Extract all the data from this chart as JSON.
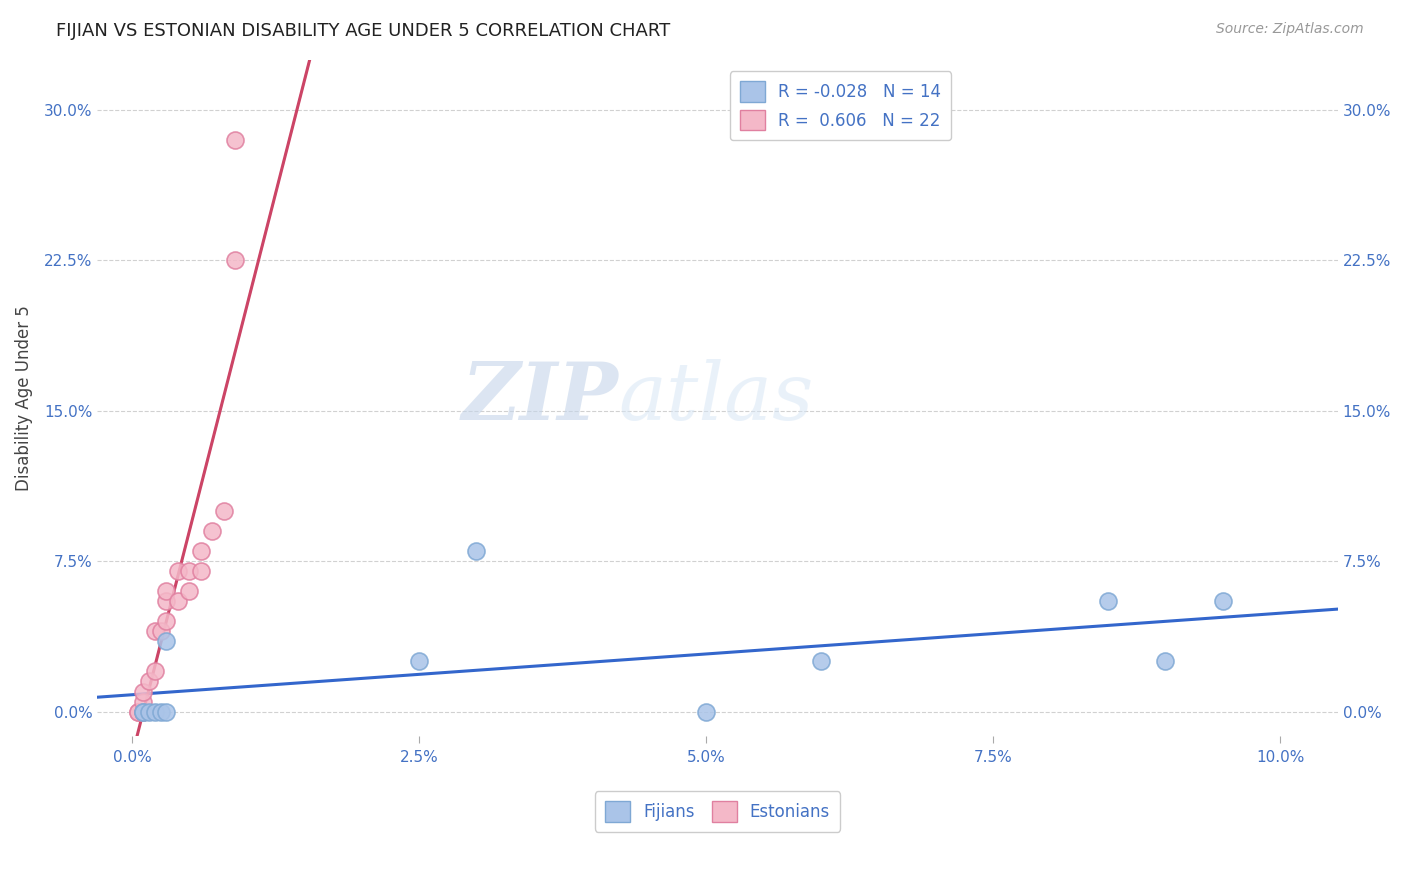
{
  "title": "FIJIAN VS ESTONIAN DISABILITY AGE UNDER 5 CORRELATION CHART",
  "source": "Source: ZipAtlas.com",
  "xlabel_vals": [
    0.0,
    0.025,
    0.05,
    0.075,
    0.1
  ],
  "ylabel_vals": [
    0.0,
    0.075,
    0.15,
    0.225,
    0.3
  ],
  "xlim": [
    -0.003,
    0.105
  ],
  "ylim": [
    -0.012,
    0.325
  ],
  "fijians_x": [
    0.001,
    0.001,
    0.0015,
    0.002,
    0.0025,
    0.003,
    0.003,
    0.025,
    0.03,
    0.05,
    0.06,
    0.085,
    0.09,
    0.095
  ],
  "fijians_y": [
    0.0,
    0.0,
    0.0,
    0.0,
    0.0,
    0.0,
    0.035,
    0.025,
    0.08,
    0.0,
    0.025,
    0.055,
    0.025,
    0.055
  ],
  "estonians_x": [
    0.0005,
    0.0005,
    0.001,
    0.001,
    0.001,
    0.0015,
    0.002,
    0.002,
    0.0025,
    0.003,
    0.003,
    0.003,
    0.004,
    0.004,
    0.005,
    0.005,
    0.006,
    0.006,
    0.007,
    0.008,
    0.009,
    0.009
  ],
  "estonians_y": [
    0.0,
    0.0,
    0.0,
    0.005,
    0.01,
    0.015,
    0.02,
    0.04,
    0.04,
    0.045,
    0.055,
    0.06,
    0.055,
    0.07,
    0.06,
    0.07,
    0.07,
    0.08,
    0.09,
    0.1,
    0.225,
    0.285
  ],
  "fijians_color": "#aac4e8",
  "estonians_color": "#f4b8c8",
  "fijians_edge_color": "#7fa8d4",
  "estonians_edge_color": "#e080a0",
  "trend_fijians_color": "#3366cc",
  "trend_estonians_color": "#cc4466",
  "dash_color": "#d0b0b8",
  "R_fijians": -0.028,
  "N_fijians": 14,
  "R_estonians": 0.606,
  "N_estonians": 22,
  "ylabel": "Disability Age Under 5",
  "watermark_zip": "ZIP",
  "watermark_atlas": "atlas",
  "legend_fijians": "Fijians",
  "legend_estonians": "Estonians"
}
